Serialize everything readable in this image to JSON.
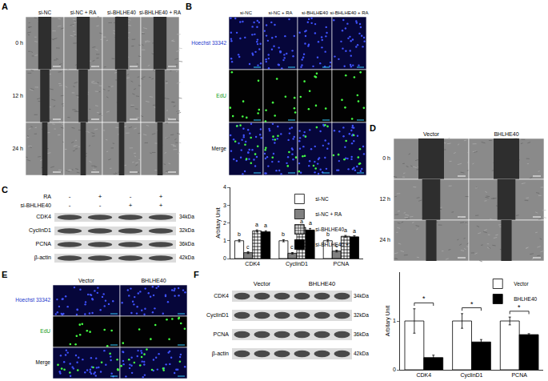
{
  "panels": [
    {
      "letter": "A",
      "kind": "scratch",
      "columns": [
        "si-NC",
        "si-NC + RA",
        "si-BHLHE40",
        "si-BHLHE40 + RA"
      ],
      "rows": [
        "0 h",
        "12 h",
        "24 h"
      ]
    },
    {
      "letter": "B",
      "kind": "fluorescence",
      "columns": [
        "si-NC",
        "si-NC + RA",
        "si-BHLHE40",
        "si-BHLHE40 + RA"
      ],
      "rows": [
        "Hoechst 33342",
        "EdU",
        "Merge"
      ]
    },
    {
      "letter": "D",
      "kind": "scratch",
      "columns": [
        "Vector",
        "BHLHE40"
      ],
      "rows": [
        "0 h",
        "12 h",
        "24 h"
      ]
    },
    {
      "letter": "E",
      "kind": "fluorescence",
      "columns": [
        "Vector",
        "BHLHE40"
      ],
      "rows": [
        "Hoechst 33342",
        "EdU",
        "Merge"
      ]
    }
  ],
  "blots": [
    {
      "letter": "C",
      "conditions": [
        {
          "label": "RA",
          "signs": [
            "-",
            "+",
            "-",
            "+"
          ]
        },
        {
          "label": "si-BHLHE40",
          "signs": [
            "-",
            "-",
            "+",
            "+"
          ]
        }
      ],
      "bands": [
        {
          "name": "CDK4",
          "size": "34kDa"
        },
        {
          "name": "CyclinD1",
          "size": "32kDa"
        },
        {
          "name": "PCNA",
          "size": "36kDa"
        },
        {
          "name": "β-actin",
          "size": "42kDa"
        }
      ]
    },
    {
      "letter": "F",
      "groups": [
        "Vector",
        "BHLHE40"
      ],
      "bands": [
        {
          "name": "CDK4",
          "size": "34kDa"
        },
        {
          "name": "CyclinD1",
          "size": "32kDa"
        },
        {
          "name": "PCNA",
          "size": "36kDa"
        },
        {
          "name": "β-actin",
          "size": "42kDa"
        }
      ]
    }
  ],
  "chart_data": [
    {
      "type": "bar",
      "ylabel": "Arbitary Unit",
      "categories": [
        "CDK4",
        "CyclinD1",
        "PCNA"
      ],
      "series": [
        {
          "name": "si-NC",
          "color": "#ffffff",
          "values": [
            1.0,
            1.0,
            1.0
          ],
          "errors": [
            0.06,
            0.06,
            0.06
          ],
          "letters": [
            "b",
            "b",
            "b"
          ]
        },
        {
          "name": "si-NC + RA",
          "color": "#808080",
          "values": [
            0.33,
            0.3,
            0.42
          ],
          "errors": [
            0.05,
            0.04,
            0.05
          ],
          "letters": [
            "c",
            "c",
            "c"
          ]
        },
        {
          "name": "si-BHLHE40",
          "color": "#ffffff",
          "marker": "checkered",
          "values": [
            1.55,
            1.75,
            1.25
          ],
          "errors": [
            0.06,
            0.07,
            0.05
          ],
          "letters": [
            "a",
            "a",
            "a"
          ]
        },
        {
          "name": "si-BHLHE40 + RA",
          "color": "#000000",
          "values": [
            1.5,
            1.6,
            1.22
          ],
          "errors": [
            0.06,
            0.09,
            0.06
          ],
          "letters": [
            "a",
            "a",
            "a"
          ]
        }
      ],
      "ylim": [
        0,
        4
      ],
      "yticks": [
        0,
        1,
        2,
        3,
        4
      ],
      "grid": false,
      "legend": "upper right"
    },
    {
      "type": "bar",
      "ylabel": "Arbitary Unit",
      "categories": [
        "CDK4",
        "CyclinD1",
        "PCNA"
      ],
      "series": [
        {
          "name": "Vector",
          "color": "#ffffff",
          "values": [
            1.0,
            1.0,
            1.0
          ],
          "errors": [
            0.25,
            0.15,
            0.08
          ]
        },
        {
          "name": "BHLHE40",
          "color": "#000000",
          "values": [
            0.25,
            0.57,
            0.72
          ],
          "errors": [
            0.05,
            0.05,
            0.02
          ]
        }
      ],
      "significance": [
        "*",
        "*",
        "*"
      ],
      "ylim": [
        0,
        2
      ],
      "yticks": [
        0,
        1
      ],
      "grid": false,
      "legend": "upper right"
    }
  ]
}
